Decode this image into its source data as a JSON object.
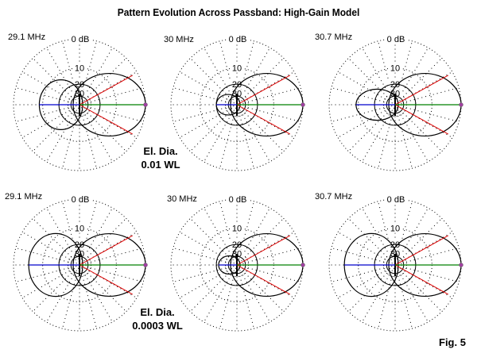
{
  "chart_data": {
    "type": "polar",
    "title": "Pattern Evolution Across Passband:  High-Gain Model",
    "figure_label": "Fig. 5",
    "ring_labels": [
      "0 dB",
      "10",
      "20",
      "30"
    ],
    "ring_db": [
      0,
      -10,
      -20,
      -30,
      -40,
      -50
    ],
    "colors": {
      "pattern": "#000000",
      "front": "#008000",
      "back": "#0000cc",
      "beamwidth": "#dd0000",
      "marker": "#a040a0"
    },
    "rows": [
      {
        "annotation": [
          "El. Dia.",
          "0.01 WL"
        ],
        "plots": [
          {
            "frequency": "29.1 MHz",
            "forward_gain_db": 0,
            "back_db": -8.5,
            "beamwidth_deg": 58,
            "back_lobe_width": 0.62
          },
          {
            "frequency": "30 MHz",
            "forward_gain_db": 0,
            "back_db": -20,
            "beamwidth_deg": 58,
            "back_lobe_width": 0.5
          },
          {
            "frequency": "30.7 MHz",
            "forward_gain_db": 0,
            "back_db": -9,
            "beamwidth_deg": 58,
            "back_lobe_width": 0.4
          }
        ]
      },
      {
        "annotation": [
          "El. Dia.",
          "0.0003 WL"
        ],
        "plots": [
          {
            "frequency": "29.1 MHz",
            "forward_gain_db": 0,
            "back_db": -4.5,
            "beamwidth_deg": 58,
            "back_lobe_width": 0.62
          },
          {
            "frequency": "30 MHz",
            "forward_gain_db": 0,
            "back_db": -22,
            "beamwidth_deg": 58,
            "back_lobe_width": 0.5
          },
          {
            "frequency": "30.7 MHz",
            "forward_gain_db": 0,
            "back_db": -4.5,
            "beamwidth_deg": 58,
            "back_lobe_width": 0.62
          }
        ]
      }
    ]
  }
}
